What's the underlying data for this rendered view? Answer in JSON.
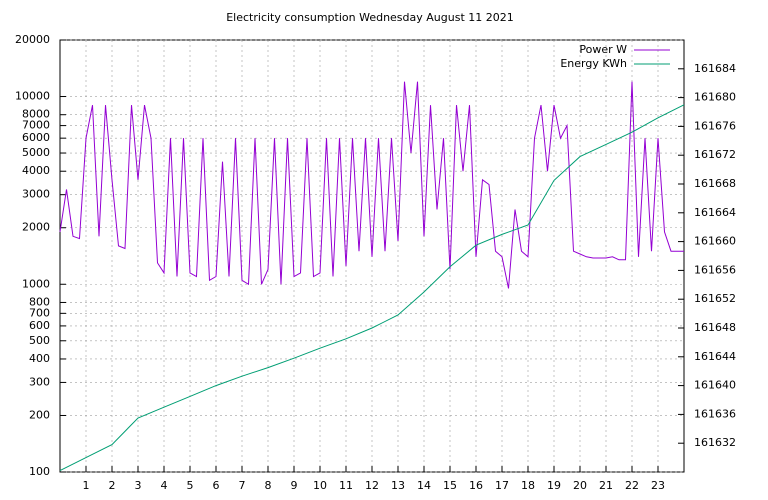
{
  "chart_data": {
    "type": "line",
    "title": "Electricity consumption Wednesday August 11 2021",
    "xlim": [
      0,
      24
    ],
    "xticks": [
      1,
      2,
      3,
      4,
      5,
      6,
      7,
      8,
      9,
      10,
      11,
      12,
      13,
      14,
      15,
      16,
      17,
      18,
      19,
      20,
      21,
      22,
      23
    ],
    "ylim": [
      100,
      20000
    ],
    "log_y": true,
    "yticks": [
      100,
      200,
      300,
      400,
      500,
      600,
      700,
      800,
      1000,
      2000,
      3000,
      4000,
      5000,
      6000,
      7000,
      8000,
      10000,
      20000
    ],
    "y2lim": [
      161628,
      161688
    ],
    "y2ticks": [
      161632,
      161636,
      161640,
      161644,
      161648,
      161652,
      161656,
      161660,
      161664,
      161668,
      161672,
      161676,
      161680,
      161684
    ],
    "grid": true,
    "legend": "top-right",
    "series": [
      {
        "name": "Power W",
        "color": "#9400d3",
        "x": [
          0,
          0.25,
          0.5,
          0.75,
          1,
          1.25,
          1.5,
          1.75,
          2,
          2.25,
          2.5,
          2.75,
          3,
          3.25,
          3.5,
          3.75,
          4,
          4.25,
          4.5,
          4.75,
          5,
          5.25,
          5.5,
          5.75,
          6,
          6.25,
          6.5,
          6.75,
          7,
          7.25,
          7.5,
          7.75,
          8,
          8.25,
          8.5,
          8.75,
          9,
          9.25,
          9.5,
          9.75,
          10,
          10.25,
          10.5,
          10.75,
          11,
          11.25,
          11.5,
          11.75,
          12,
          12.25,
          12.5,
          12.75,
          13,
          13.25,
          13.5,
          13.75,
          14,
          14.25,
          14.5,
          14.75,
          15,
          15.25,
          15.5,
          15.75,
          16,
          16.25,
          16.5,
          16.75,
          17,
          17.25,
          17.5,
          17.75,
          18,
          18.25,
          18.5,
          18.75,
          19,
          19.25,
          19.5,
          19.75,
          20,
          20.25,
          20.5,
          20.75,
          21,
          21.25,
          21.5,
          21.75,
          22,
          22.25,
          22.5,
          22.75,
          23,
          23.25,
          23.5,
          23.75,
          24
        ],
        "values": [
          1900,
          3200,
          1800,
          1750,
          6000,
          9000,
          1800,
          9000,
          3600,
          1600,
          1550,
          9000,
          3600,
          9000,
          6000,
          1300,
          1150,
          6000,
          1100,
          6000,
          1150,
          1100,
          6000,
          1050,
          1100,
          4500,
          1100,
          6000,
          1050,
          1000,
          6000,
          1000,
          1200,
          6000,
          1000,
          6000,
          1100,
          1150,
          6000,
          1100,
          1150,
          6000,
          1100,
          6000,
          1250,
          6000,
          1500,
          6000,
          1400,
          6000,
          1500,
          6000,
          1700,
          12000,
          5000,
          12000,
          1800,
          9000,
          2500,
          6000,
          1200,
          9000,
          4000,
          9000,
          1400,
          3600,
          3400,
          1500,
          1400,
          950,
          2500,
          1500,
          1400,
          6000,
          9000,
          4000,
          9000,
          6000,
          7000,
          1500,
          1450,
          1400,
          1380,
          1380,
          1380,
          1400,
          1350,
          1350,
          12000,
          1400,
          6000,
          1500,
          6000,
          1900,
          1500,
          1500,
          1500
        ]
      },
      {
        "name": "Energy KWh",
        "color": "#009e73",
        "axis": "y2",
        "x": [
          0,
          1,
          2,
          3,
          4,
          5,
          6,
          7,
          8,
          9,
          10,
          11,
          12,
          13,
          14,
          15,
          16,
          17,
          18,
          19,
          20,
          21,
          22,
          23,
          24
        ],
        "values": [
          161628.2,
          161630,
          161631.8,
          161635.5,
          161637,
          161638.5,
          161640,
          161641.3,
          161642.5,
          161643.8,
          161645.2,
          161646.5,
          161648,
          161649.8,
          161653,
          161656.5,
          161659.5,
          161661,
          161662.3,
          161668.5,
          161671.8,
          161673.5,
          161675.2,
          161677.2,
          161679
        ]
      }
    ]
  }
}
